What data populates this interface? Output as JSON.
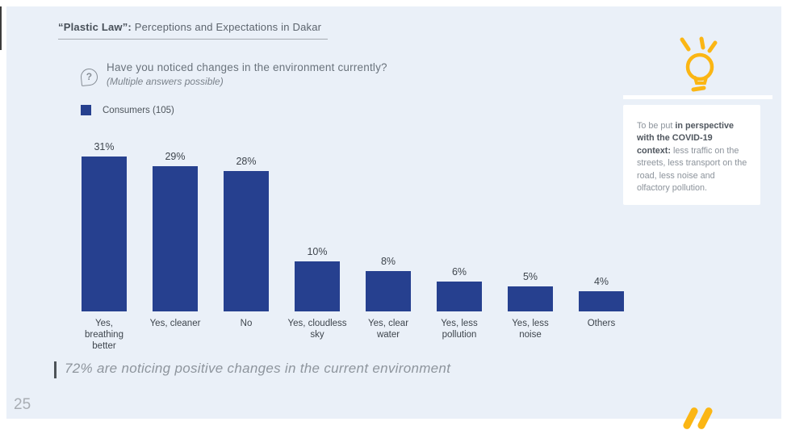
{
  "slide": {
    "page_number": "25",
    "header": {
      "title_bold": "“Plastic Law”:",
      "title_rest": " Perceptions and Expectations in Dakar"
    },
    "question": {
      "text": "Have you noticed changes in the environment currently?",
      "subtext": "(Multiple answers possible)"
    },
    "legend": {
      "label": "Consumers (105)"
    },
    "note": {
      "prefix": "To be put ",
      "bold": "in perspective with the COVID-19 context:",
      "suffix": " less traffic on the streets, less transport on the road, less noise and olfactory pollution."
    },
    "takeaway": "72% are noticing positive changes in the current environment"
  },
  "chart_data": {
    "type": "bar",
    "title": "Have you noticed changes in the environment currently?",
    "series_name": "Consumers (105)",
    "categories": [
      "Yes, breathing better",
      "Yes, cleaner",
      "No",
      "Yes, cloudless sky",
      "Yes, clear water",
      "Yes, less pollution",
      "Yes, less noise",
      "Others"
    ],
    "values": [
      31,
      29,
      28,
      10,
      8,
      6,
      5,
      4
    ],
    "label_lines": [
      [
        "Yes,",
        "breathing",
        "better"
      ],
      [
        "Yes, cleaner"
      ],
      [
        "No"
      ],
      [
        "Yes, cloudless",
        "sky"
      ],
      [
        "Yes, clear",
        "water"
      ],
      [
        "Yes, less",
        "pollution"
      ],
      [
        "Yes, less",
        "noise"
      ],
      [
        "Others"
      ]
    ],
    "value_suffix": "%",
    "bar_color": "#26408F",
    "xlabel": "",
    "ylabel": "",
    "ylim": [
      0,
      33
    ],
    "grid": false,
    "legend_position": "top-left"
  },
  "colors": {
    "panel_background": "#EAF0F8",
    "bar_blue": "#26408F",
    "accent_yellow": "#FBB614",
    "card_background": "#FFFFFF"
  }
}
